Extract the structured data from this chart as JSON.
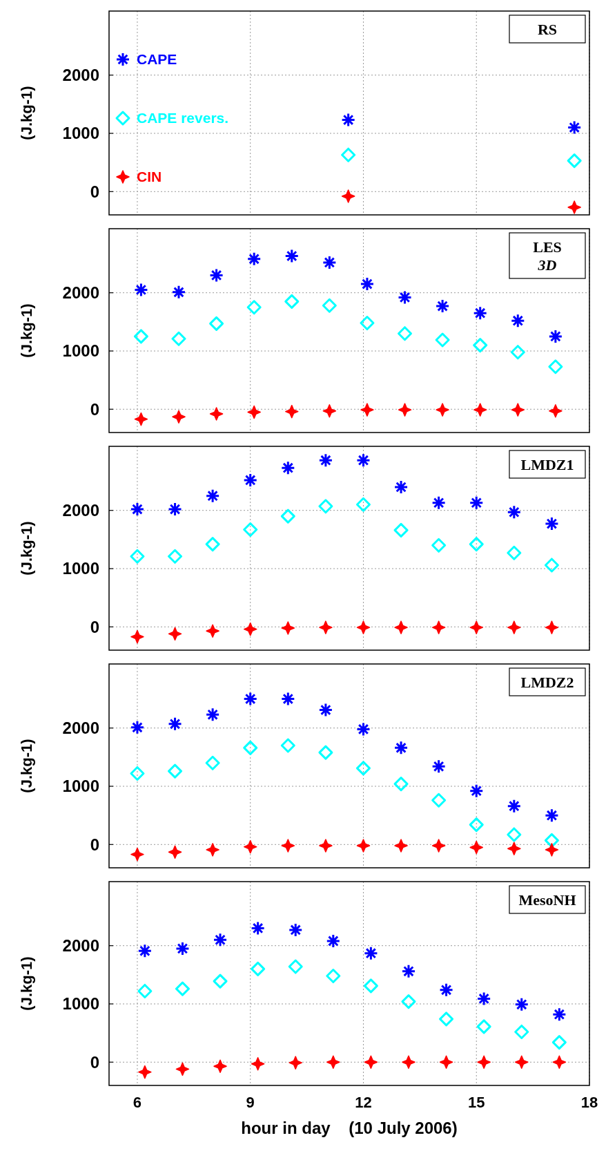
{
  "chart_data": [
    {
      "type": "scatter",
      "annotations": [
        "RS"
      ],
      "ylabel": "(J.kg-1)",
      "xlim": [
        5.25,
        18
      ],
      "xticks": [
        6,
        9,
        12,
        15,
        18
      ],
      "ylim": [
        -400,
        3100
      ],
      "yticks": [
        0,
        1000,
        2000
      ],
      "grid": true,
      "legend": "left",
      "tick_labels": "y",
      "series": [
        {
          "name": "CAPE",
          "color": "#0000ff",
          "marker": "cross",
          "x": [
            11.6,
            17.6
          ],
          "values": [
            1230,
            1100
          ]
        },
        {
          "name": "CAPE revers.",
          "color": "#00ffff",
          "marker": "diamond",
          "x": [
            11.6,
            17.6
          ],
          "values": [
            630,
            530
          ]
        },
        {
          "name": "CIN",
          "color": "#ff0000",
          "marker": "star",
          "x": [
            11.6,
            17.6
          ],
          "values": [
            -80,
            -270
          ]
        }
      ]
    },
    {
      "type": "scatter",
      "annotations": [
        "LES",
        "3D"
      ],
      "ylabel": "(J.kg-1)",
      "xlim": [
        5.25,
        18
      ],
      "xticks": [
        6,
        9,
        12,
        15,
        18
      ],
      "ylim": [
        -400,
        3100
      ],
      "yticks": [
        0,
        1000,
        2000
      ],
      "grid": true,
      "tick_labels": "y",
      "series": [
        {
          "color": "#0000ff",
          "marker": "cross",
          "x": [
            6.1,
            7.1,
            8.1,
            9.1,
            10.1,
            11.1,
            12.1,
            13.1,
            14.1,
            15.1,
            16.1,
            17.1
          ],
          "values": [
            2050,
            2010,
            2300,
            2580,
            2630,
            2520,
            2150,
            1920,
            1770,
            1650,
            1520,
            1250
          ]
        },
        {
          "color": "#00ffff",
          "marker": "diamond",
          "x": [
            6.1,
            7.1,
            8.1,
            9.1,
            10.1,
            11.1,
            12.1,
            13.1,
            14.1,
            15.1,
            16.1,
            17.1
          ],
          "values": [
            1250,
            1210,
            1470,
            1750,
            1850,
            1780,
            1480,
            1300,
            1190,
            1100,
            980,
            730
          ]
        },
        {
          "color": "#ff0000",
          "marker": "star",
          "x": [
            6.1,
            7.1,
            8.1,
            9.1,
            10.1,
            11.1,
            12.1,
            13.1,
            14.1,
            15.1,
            16.1,
            17.1
          ],
          "values": [
            -170,
            -130,
            -80,
            -50,
            -40,
            -30,
            -10,
            -10,
            -10,
            -10,
            -10,
            -30
          ]
        }
      ]
    },
    {
      "type": "scatter",
      "annotations": [
        "LMDZ1"
      ],
      "ylabel": "(J.kg-1)",
      "xlim": [
        5.25,
        18
      ],
      "xticks": [
        6,
        9,
        12,
        15,
        18
      ],
      "ylim": [
        -400,
        3100
      ],
      "yticks": [
        0,
        1000,
        2000
      ],
      "grid": true,
      "tick_labels": "y",
      "series": [
        {
          "color": "#0000ff",
          "marker": "cross",
          "x": [
            6,
            7,
            8,
            9,
            10,
            11,
            12,
            13,
            14,
            15,
            16,
            17
          ],
          "values": [
            2020,
            2020,
            2250,
            2520,
            2730,
            2860,
            2860,
            2400,
            2130,
            2130,
            1970,
            1770
          ]
        },
        {
          "color": "#00ffff",
          "marker": "diamond",
          "x": [
            6,
            7,
            8,
            9,
            10,
            11,
            12,
            13,
            14,
            15,
            16,
            17
          ],
          "values": [
            1210,
            1210,
            1420,
            1670,
            1900,
            2070,
            2100,
            1660,
            1400,
            1420,
            1270,
            1060
          ]
        },
        {
          "color": "#ff0000",
          "marker": "star",
          "x": [
            6,
            7,
            8,
            9,
            10,
            11,
            12,
            13,
            14,
            15,
            16,
            17
          ],
          "values": [
            -170,
            -120,
            -70,
            -40,
            -20,
            -10,
            -10,
            -10,
            -10,
            -10,
            -10,
            -10
          ]
        }
      ]
    },
    {
      "type": "scatter",
      "annotations": [
        "LMDZ2"
      ],
      "ylabel": "(J.kg-1)",
      "xlim": [
        5.25,
        18
      ],
      "xticks": [
        6,
        9,
        12,
        15,
        18
      ],
      "ylim": [
        -400,
        3100
      ],
      "yticks": [
        0,
        1000,
        2000
      ],
      "grid": true,
      "tick_labels": "y",
      "series": [
        {
          "color": "#0000ff",
          "marker": "cross",
          "x": [
            6,
            7,
            8,
            9,
            10,
            11,
            12,
            13,
            14,
            15,
            16,
            17
          ],
          "values": [
            2010,
            2070,
            2230,
            2500,
            2500,
            2310,
            1980,
            1660,
            1340,
            920,
            660,
            500
          ]
        },
        {
          "color": "#00ffff",
          "marker": "diamond",
          "x": [
            6,
            7,
            8,
            9,
            10,
            11,
            12,
            13,
            14,
            15,
            16,
            17
          ],
          "values": [
            1220,
            1260,
            1400,
            1660,
            1700,
            1580,
            1310,
            1040,
            760,
            340,
            170,
            70
          ]
        },
        {
          "color": "#ff0000",
          "marker": "star",
          "x": [
            6,
            7,
            8,
            9,
            10,
            11,
            12,
            13,
            14,
            15,
            16,
            17
          ],
          "values": [
            -170,
            -130,
            -90,
            -40,
            -20,
            -20,
            -20,
            -20,
            -20,
            -50,
            -70,
            -90
          ]
        }
      ]
    },
    {
      "type": "scatter",
      "annotations": [
        "MesoNH"
      ],
      "ylabel": "(J.kg-1)",
      "xlabel": "hour in day    (10 July 2006)",
      "xlim": [
        5.25,
        18
      ],
      "xticks": [
        6,
        9,
        12,
        15,
        18
      ],
      "ylim": [
        -400,
        3100
      ],
      "yticks": [
        0,
        1000,
        2000
      ],
      "grid": true,
      "series": [
        {
          "color": "#0000ff",
          "marker": "cross",
          "x": [
            6.2,
            7.2,
            8.2,
            9.2,
            10.2,
            11.2,
            12.2,
            13.2,
            14.2,
            15.2,
            16.2,
            17.2
          ],
          "values": [
            1910,
            1950,
            2100,
            2300,
            2270,
            2080,
            1870,
            1560,
            1240,
            1090,
            990,
            820
          ]
        },
        {
          "color": "#00ffff",
          "marker": "diamond",
          "x": [
            6.2,
            7.2,
            8.2,
            9.2,
            10.2,
            11.2,
            12.2,
            13.2,
            14.2,
            15.2,
            16.2,
            17.2
          ],
          "values": [
            1220,
            1260,
            1390,
            1600,
            1640,
            1480,
            1310,
            1040,
            740,
            610,
            520,
            340
          ]
        },
        {
          "color": "#ff0000",
          "marker": "star",
          "x": [
            6.2,
            7.2,
            8.2,
            9.2,
            10.2,
            11.2,
            12.2,
            13.2,
            14.2,
            15.2,
            16.2,
            17.2
          ],
          "values": [
            -170,
            -120,
            -70,
            -30,
            -10,
            0,
            0,
            0,
            0,
            0,
            0,
            0
          ]
        }
      ]
    }
  ]
}
